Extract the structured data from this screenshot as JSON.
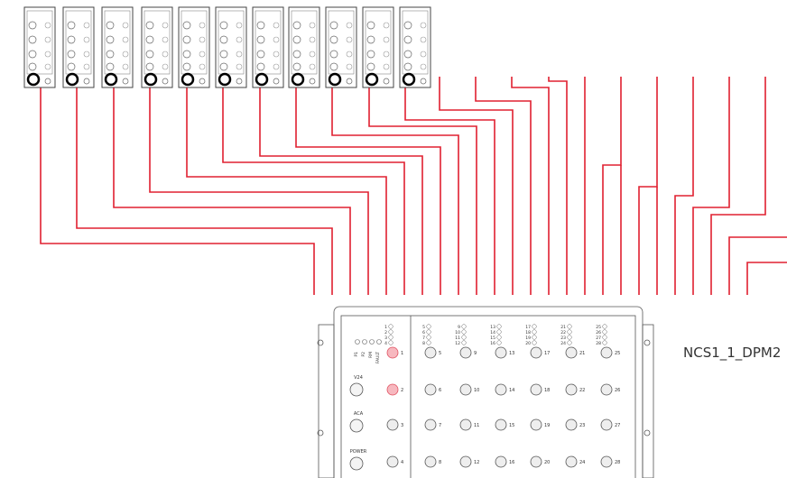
{
  "device": {
    "name": "NCS1_1_DPM2",
    "status_leds": [
      "P1",
      "P2",
      "RM",
      "FAULT"
    ],
    "power_ports": [
      "V24",
      "ACA",
      "POWER"
    ],
    "ports": [
      "1",
      "2",
      "3",
      "4",
      "5",
      "6",
      "7",
      "8",
      "9",
      "10",
      "11",
      "12",
      "13",
      "14",
      "15",
      "16",
      "17",
      "18",
      "19",
      "20",
      "21",
      "22",
      "23",
      "24",
      "25",
      "26",
      "27",
      "28"
    ]
  }
}
